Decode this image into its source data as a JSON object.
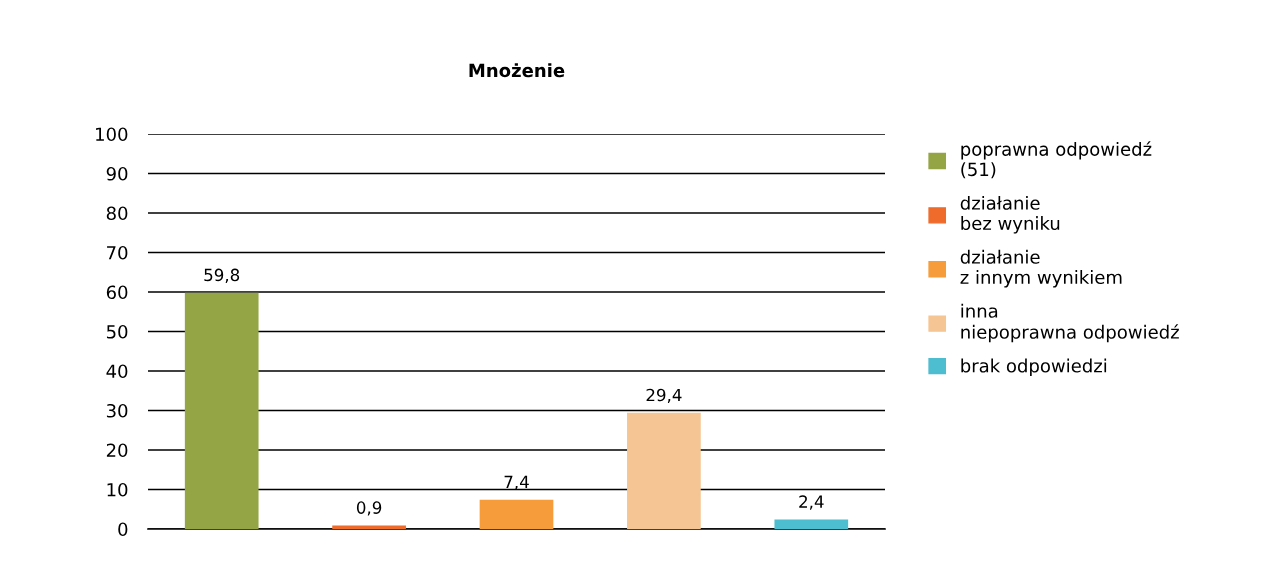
{
  "chart_data": {
    "type": "bar",
    "title": "Mnożenie",
    "categories": [
      null,
      null,
      null,
      null,
      null
    ],
    "stacked": true,
    "series": [
      {
        "name": "poprawna odpowiedź\n(51)",
        "color": "#94a545",
        "values": [
          59.8,
          null,
          null,
          null,
          null
        ],
        "value_labels": [
          "59,8",
          null,
          null,
          null,
          null
        ]
      },
      {
        "name": "działanie\nbez wyniku",
        "color": "#ee6b2b",
        "values": [
          null,
          0.9,
          null,
          null,
          null
        ],
        "value_labels": [
          null,
          "0,9",
          null,
          null,
          null
        ]
      },
      {
        "name": "działanie\nz innym wynikiem",
        "color": "#f69c3a",
        "values": [
          null,
          null,
          7.4,
          null,
          null
        ],
        "value_labels": [
          null,
          null,
          "7,4",
          null,
          null
        ]
      },
      {
        "name": "inna\nniepoprawna odpowiedź",
        "color": "#f5c593",
        "values": [
          null,
          null,
          null,
          29.4,
          null
        ],
        "value_labels": [
          null,
          null,
          null,
          "29,4",
          null
        ]
      },
      {
        "name": "brak odpowiedzi",
        "color": "#4dbdd0",
        "values": [
          null,
          null,
          null,
          null,
          2.4
        ],
        "value_labels": [
          null,
          null,
          null,
          null,
          "2,4"
        ]
      }
    ],
    "ylim": [
      0,
      100
    ],
    "yticks": [
      0,
      10,
      20,
      30,
      40,
      50,
      60,
      70,
      80,
      90,
      100
    ],
    "grid": "y",
    "legend": "right"
  }
}
